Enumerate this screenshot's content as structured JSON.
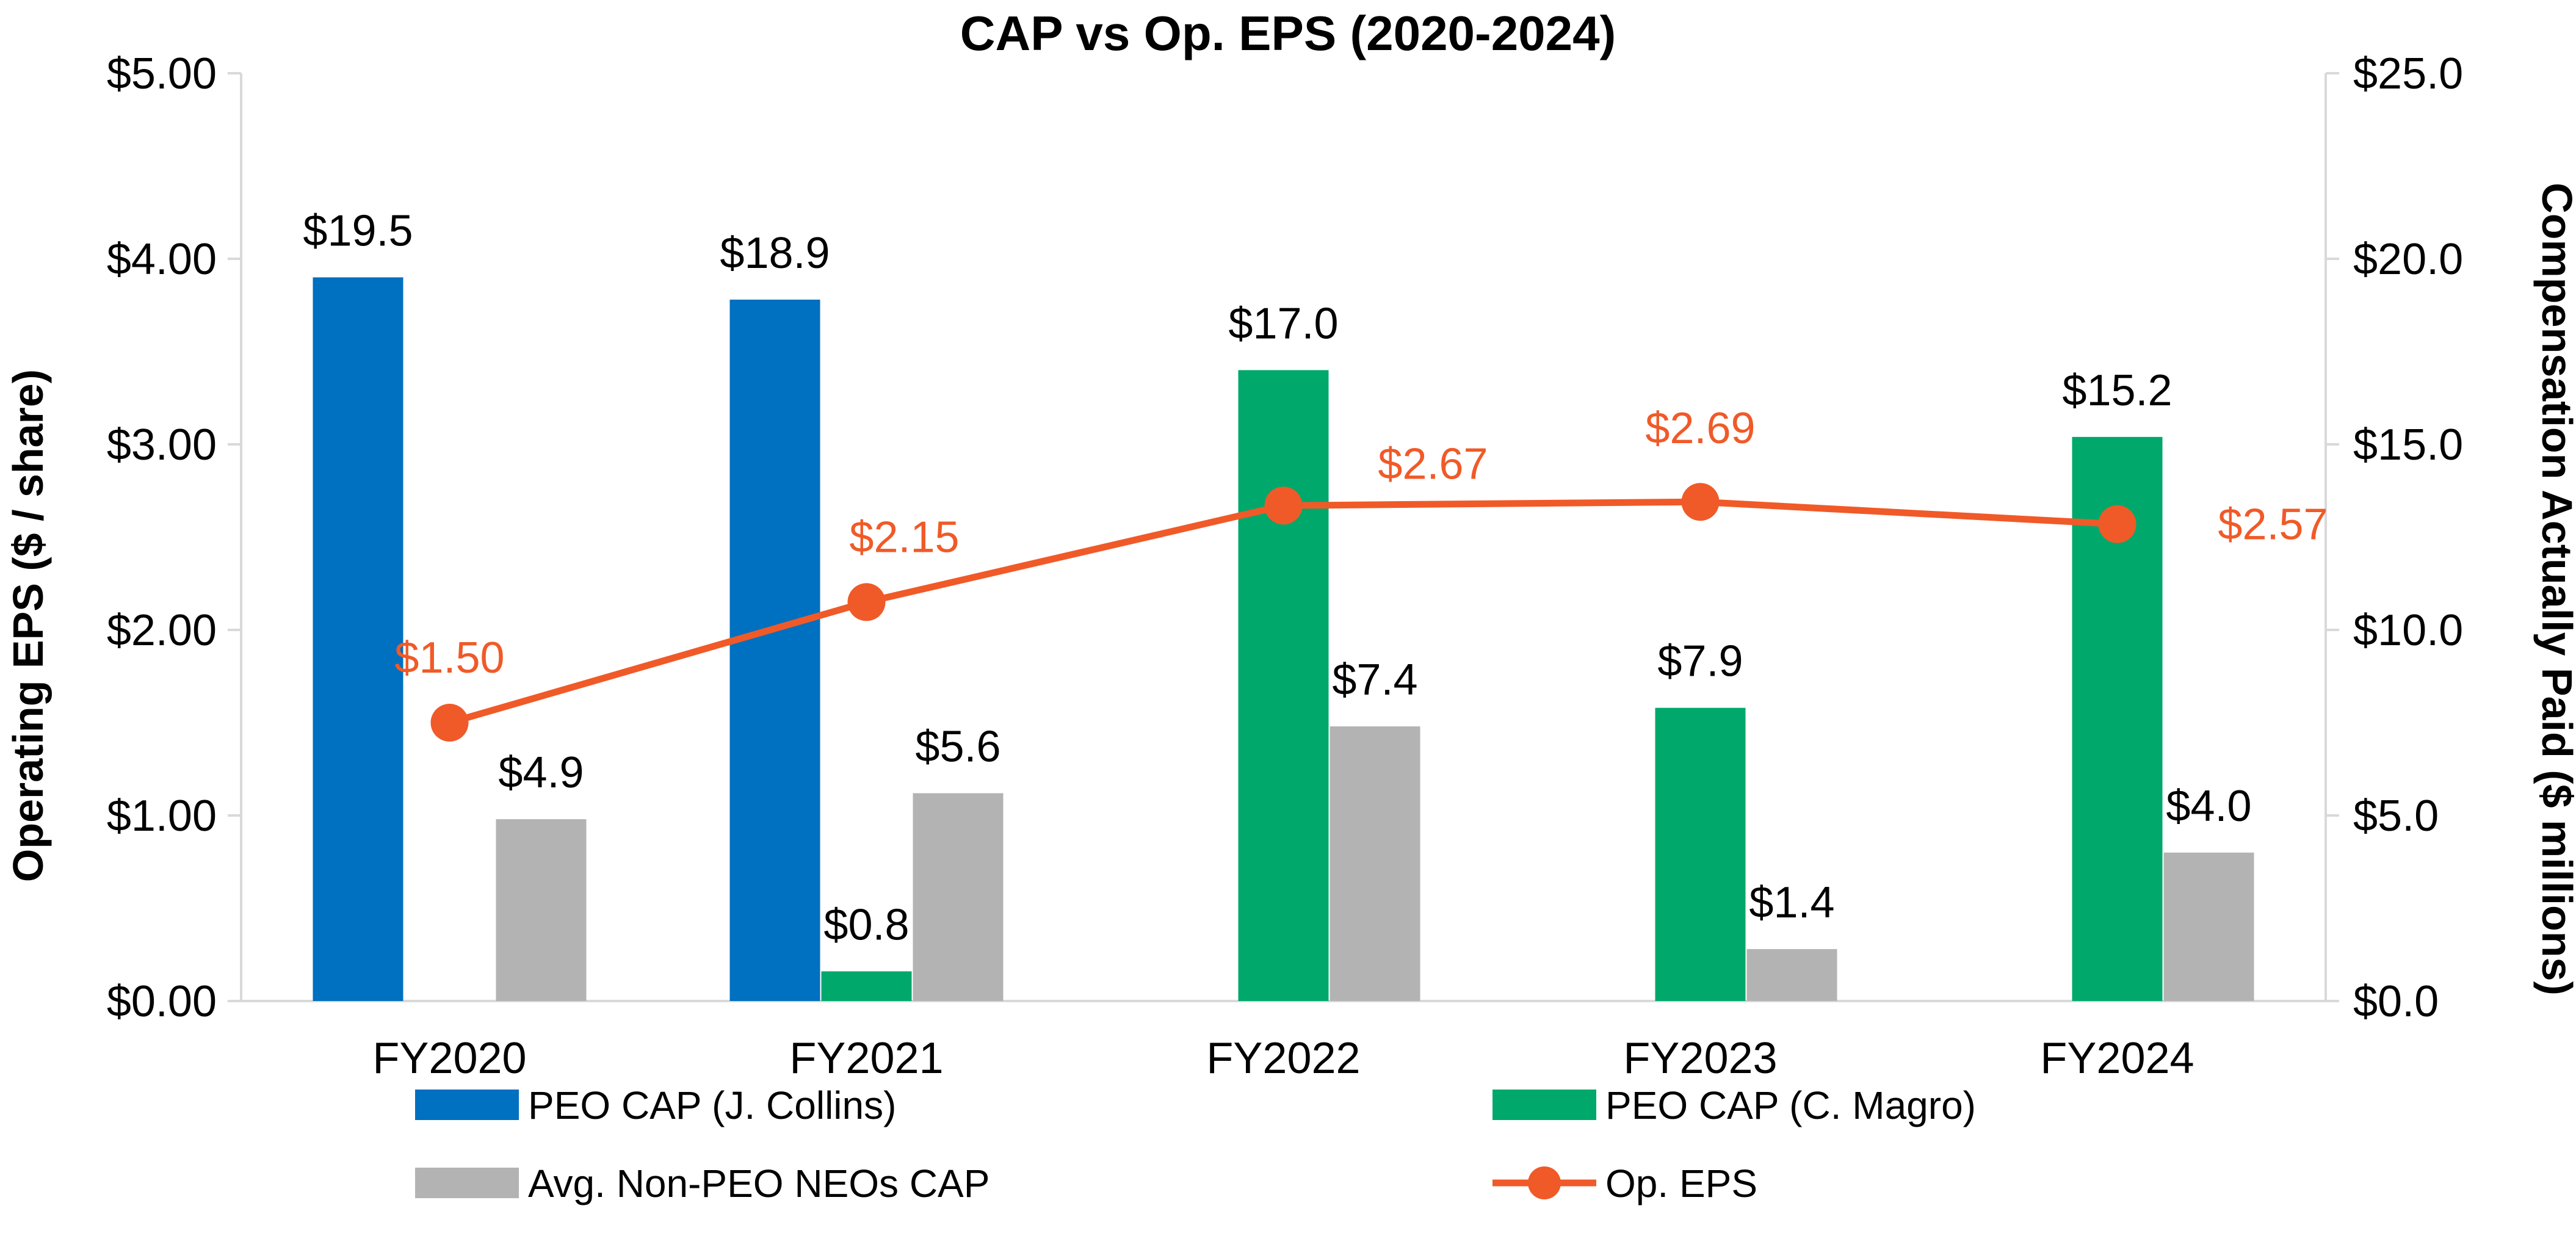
{
  "chart_data": {
    "type": "bar",
    "title": "CAP vs Op. EPS (2020-2024)",
    "categories": [
      "FY2020",
      "FY2021",
      "FY2022",
      "FY2023",
      "FY2024"
    ],
    "ylabel_left": "Operating EPS ($ / share)",
    "ylabel_right": "Compensation Actually Paid ($ millions)",
    "ylim_left": [
      0,
      5
    ],
    "ylim_right": [
      0,
      25
    ],
    "left_ticks": [
      "$0.00",
      "$1.00",
      "$2.00",
      "$3.00",
      "$4.00",
      "$5.00"
    ],
    "right_ticks": [
      "$0.0",
      "$5.0",
      "$10.0",
      "$15.0",
      "$20.0",
      "$25.0"
    ],
    "grid": false,
    "legend_position": "bottom",
    "series": [
      {
        "name": "PEO CAP (J. Collins)",
        "kind": "bar",
        "axis": "right",
        "color": "#0070c0",
        "values": [
          19.5,
          18.9,
          null,
          null,
          null
        ],
        "labels": [
          "$19.5",
          "$18.9",
          "",
          "",
          ""
        ]
      },
      {
        "name": "PEO CAP (C. Magro)",
        "kind": "bar",
        "axis": "right",
        "color": "#00a86b",
        "values": [
          null,
          0.8,
          17.0,
          7.9,
          15.2
        ],
        "labels": [
          "",
          "$0.8",
          "$17.0",
          "$7.9",
          "$15.2"
        ]
      },
      {
        "name": "Avg. Non-PEO NEOs CAP",
        "kind": "bar",
        "axis": "right",
        "color": "#b3b3b3",
        "values": [
          4.9,
          5.6,
          7.4,
          1.4,
          4.0
        ],
        "labels": [
          "$4.9",
          "$5.6",
          "$7.4",
          "$1.4",
          "$4.0"
        ]
      },
      {
        "name": "Op. EPS",
        "kind": "line",
        "axis": "left",
        "color": "#f05a28",
        "values": [
          1.5,
          2.15,
          2.67,
          2.69,
          2.57
        ],
        "labels": [
          "$1.50",
          "$2.15",
          "$2.67",
          "$2.69",
          "$2.57"
        ]
      }
    ]
  }
}
